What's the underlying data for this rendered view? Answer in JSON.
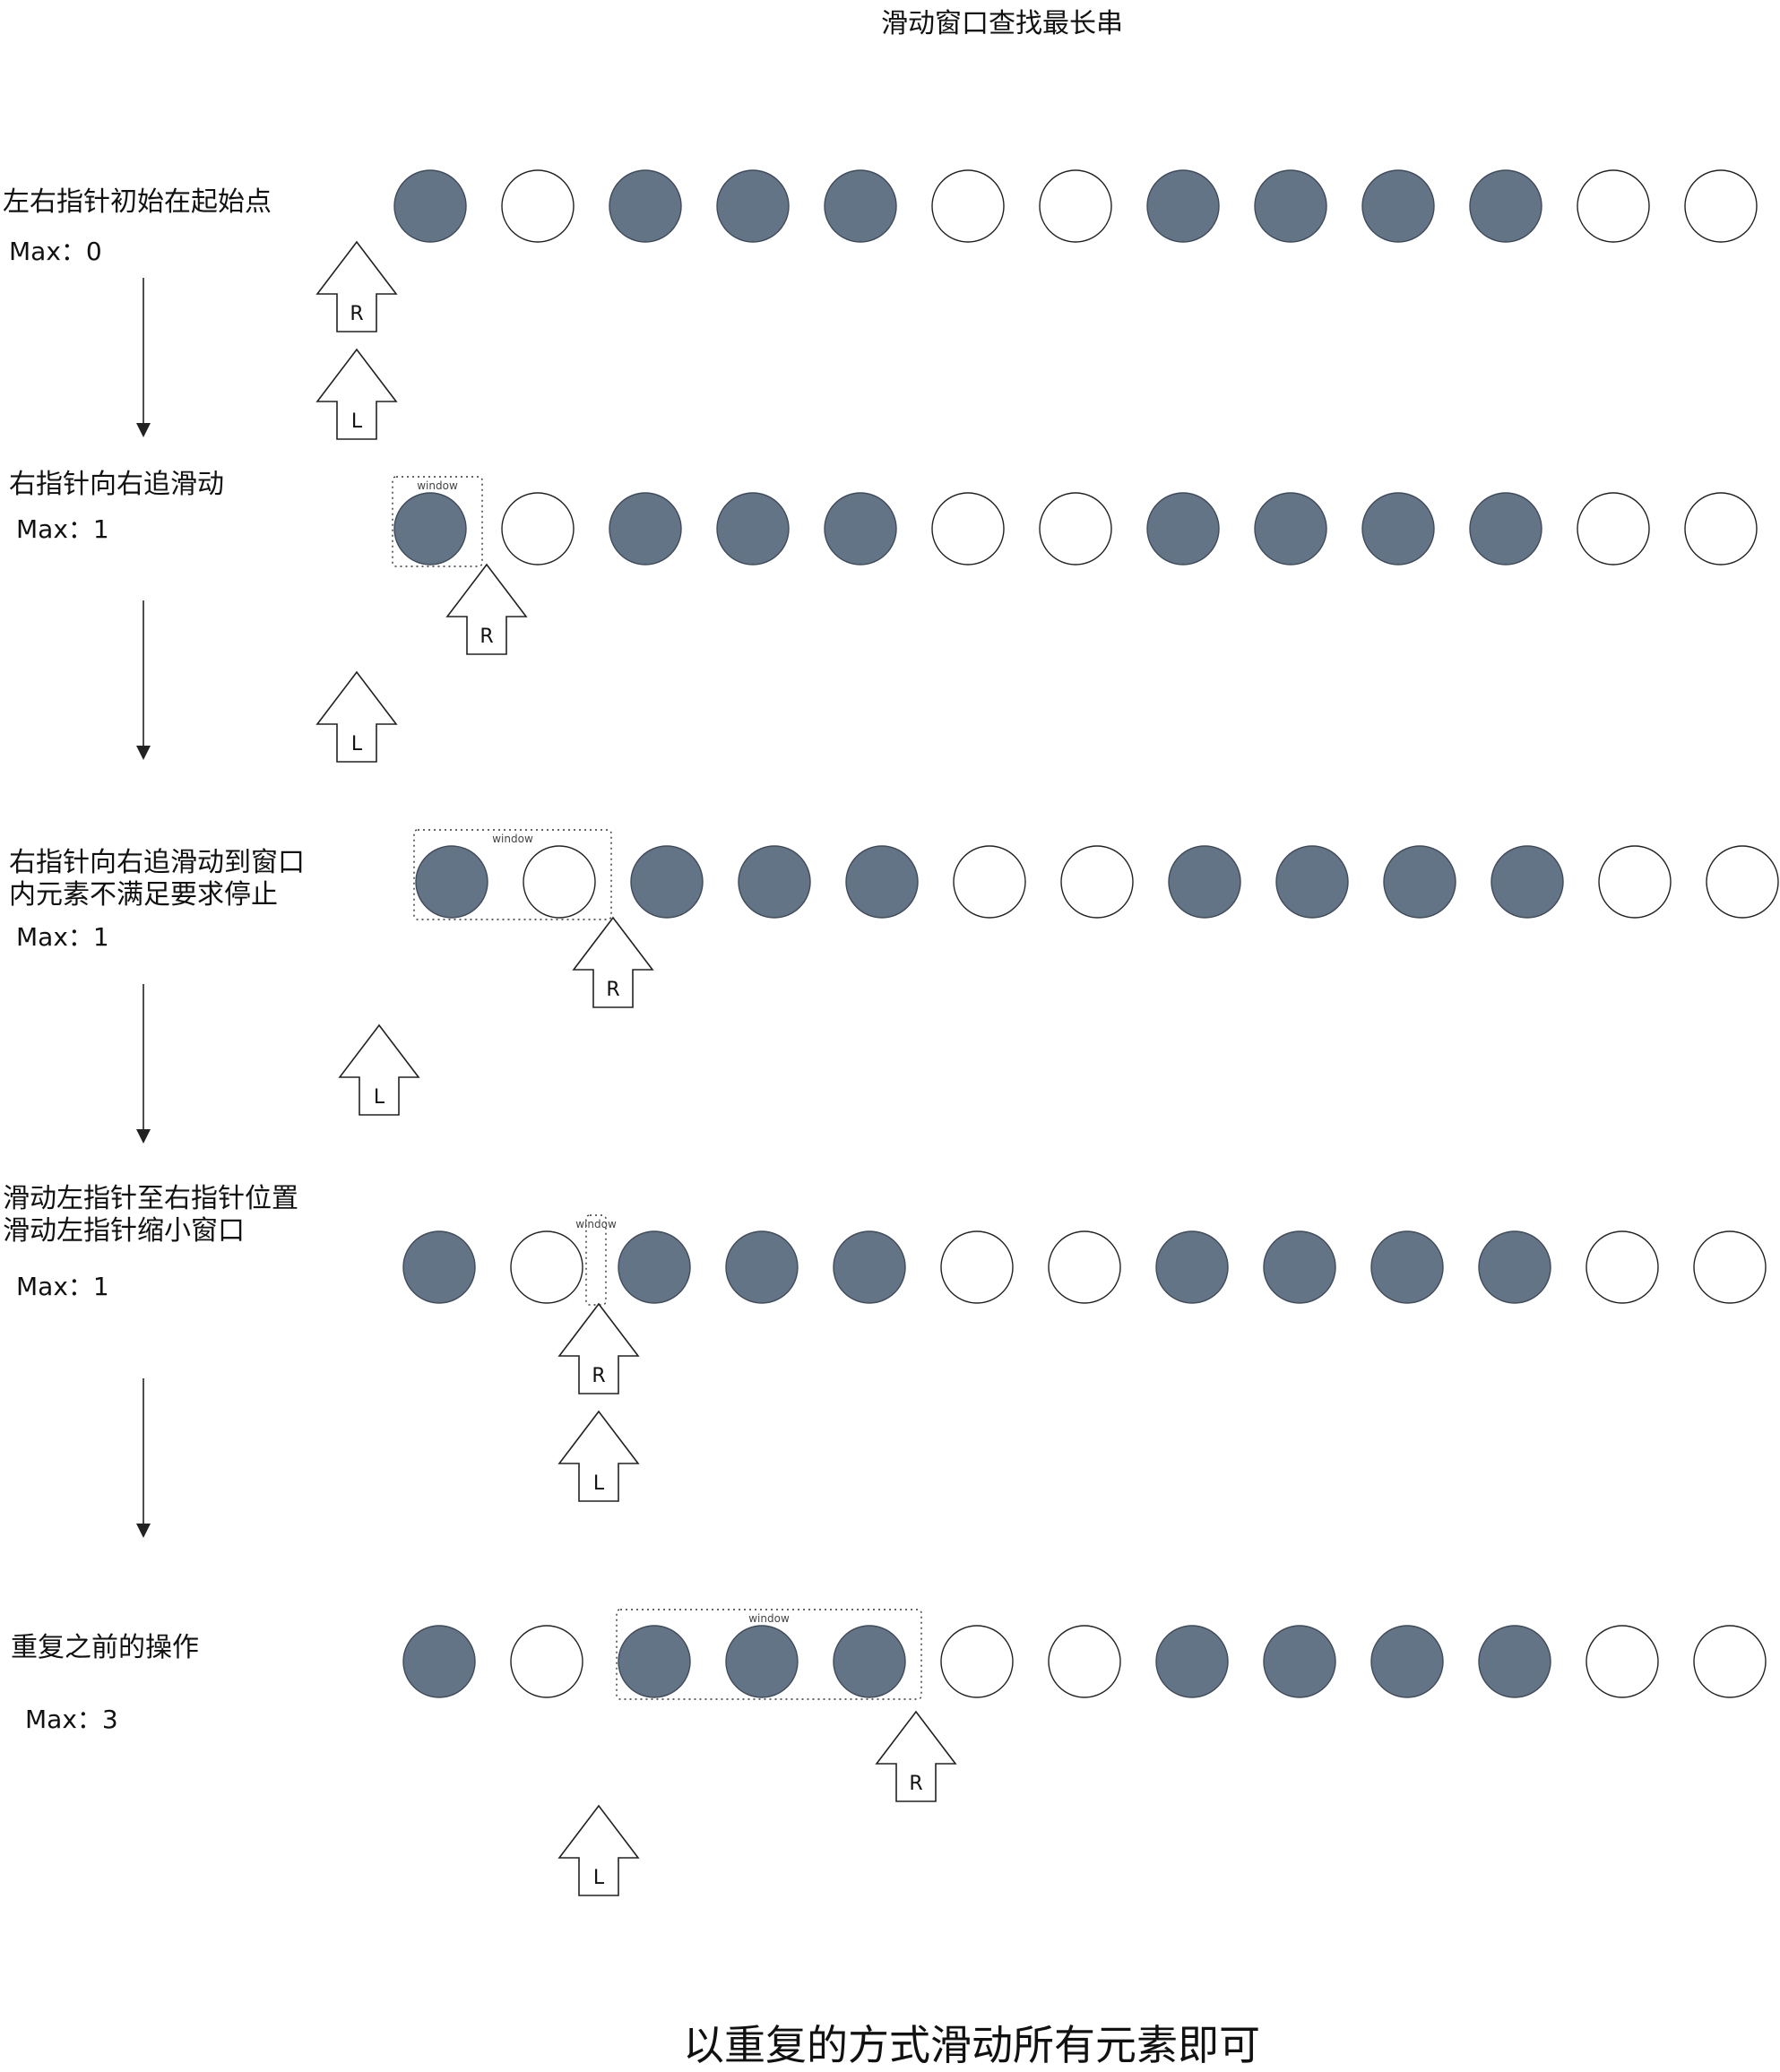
{
  "title": "滑动窗口查找最长串",
  "footer": "以重复的方式滑动所有元素即可",
  "colors": {
    "filled": "#647487",
    "filled_stroke": "#3f4b59",
    "empty": "#ffffff",
    "stroke": "#222222"
  },
  "sequence": [
    1,
    0,
    1,
    1,
    1,
    0,
    0,
    1,
    1,
    1,
    1,
    0,
    0
  ],
  "steps": [
    {
      "lines": [
        "左右指针初始在起始点"
      ],
      "max_label": "Max：0",
      "pointer_r": "R",
      "pointer_l": "L",
      "window_label": ""
    },
    {
      "lines": [
        "右指针向右追滑动"
      ],
      "max_label": "Max：1",
      "pointer_r": "R",
      "pointer_l": "L",
      "window_label": "window"
    },
    {
      "lines": [
        "右指针向右追滑动到窗口",
        "内元素不满足要求停止"
      ],
      "max_label": "Max：1",
      "pointer_r": "R",
      "pointer_l": "L",
      "window_label": "window"
    },
    {
      "lines": [
        "滑动左指针至右指针位置",
        "滑动左指针缩小窗口"
      ],
      "max_label": "Max：1",
      "pointer_r": "R",
      "pointer_l": "L",
      "window_label": "window"
    },
    {
      "lines": [
        "重复之前的操作"
      ],
      "max_label": "Max：3",
      "pointer_r": "R",
      "pointer_l": "L",
      "window_label": "window"
    }
  ]
}
